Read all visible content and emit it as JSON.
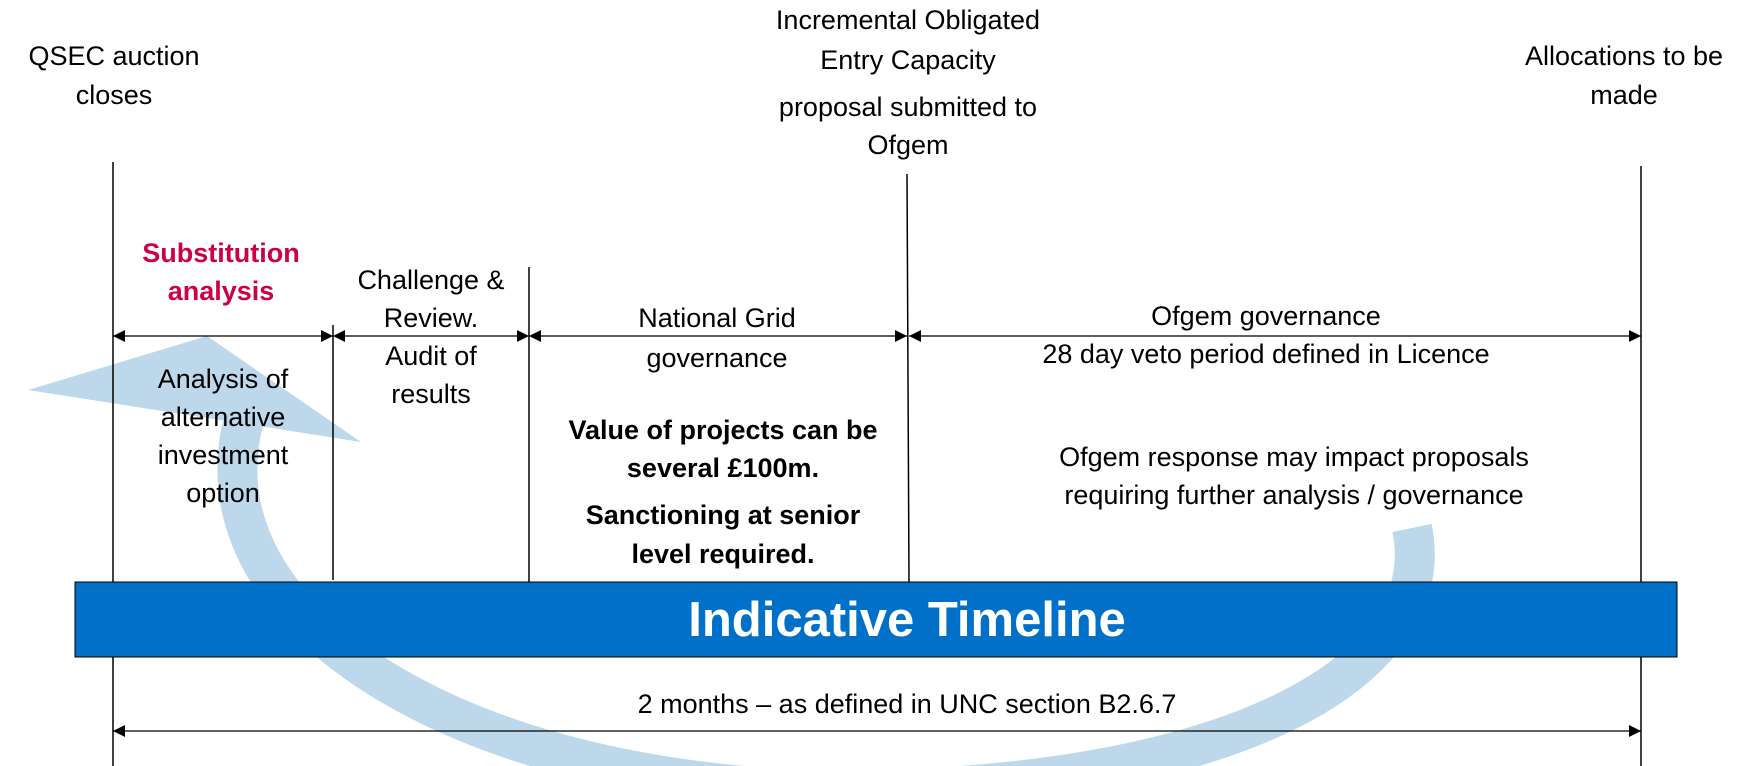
{
  "milestones": {
    "start": [
      "QSEC auction",
      "closes"
    ],
    "middle": [
      "Incremental Obligated",
      "Entry Capacity",
      "proposal submitted to",
      "Ofgem"
    ],
    "end": [
      "Allocations to be",
      "made"
    ]
  },
  "phases": {
    "substitution": {
      "title": [
        "Substitution",
        "analysis"
      ],
      "detail": [
        "Analysis of",
        "alternative",
        "investment",
        "option"
      ]
    },
    "challenge": {
      "title": [
        "Challenge &",
        "Review.",
        "Audit of",
        "results"
      ]
    },
    "national_grid": {
      "title": [
        "National Grid",
        "governance"
      ],
      "detail": [
        "Value of projects can be",
        "several £100m.",
        "Sanctioning at senior",
        "level required."
      ]
    },
    "ofgem": {
      "title": [
        "Ofgem governance",
        "28 day veto period defined in Licence"
      ],
      "detail": [
        "Ofgem response may impact proposals",
        "requiring further analysis / governance"
      ]
    }
  },
  "banner": "Indicative Timeline",
  "duration": "2 months – as defined in UNC section B2.6.7"
}
